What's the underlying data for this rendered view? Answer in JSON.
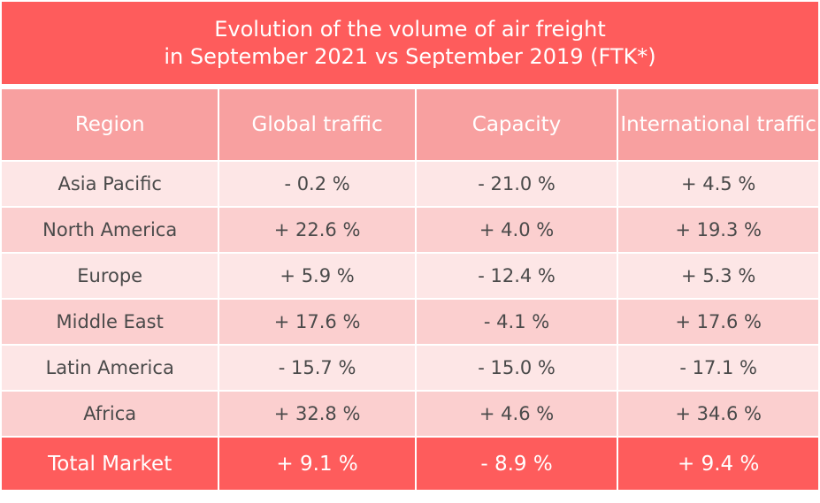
{
  "chart_data": {
    "type": "table",
    "title": [
      "Evolution of the volume of air freight",
      "in September 2021 vs September 2019 (FTK*)"
    ],
    "columns": [
      "Region",
      "Global traffic",
      "Capacity",
      "International traffic"
    ],
    "rows": [
      [
        "Asia Pacific",
        "- 0.2 %",
        "- 21.0 %",
        "+ 4.5 %"
      ],
      [
        "North America",
        "+ 22.6 %",
        "+ 4.0 %",
        "+ 19.3 %"
      ],
      [
        "Europe",
        "+ 5.9 %",
        "- 12.4 %",
        "+ 5.3 %"
      ],
      [
        "Middle East",
        "+ 17.6 %",
        "- 4.1 %",
        "+ 17.6 %"
      ],
      [
        "Latin America",
        "- 15.7 %",
        "- 15.0 %",
        "- 17.1 %"
      ],
      [
        "Africa",
        "+ 32.8 %",
        "+ 4.6 %",
        "+ 34.6 %"
      ]
    ],
    "total": [
      "Total Market",
      "+ 9.1 %",
      "- 8.9 %",
      "+ 9.4 %"
    ]
  },
  "colors": {
    "title_bg": "#fe5c5c",
    "header_bg": "#f8a0a0",
    "row_light": "#fde6e6",
    "row_dark": "#fbcfcf",
    "total_bg": "#fe5c5c"
  }
}
